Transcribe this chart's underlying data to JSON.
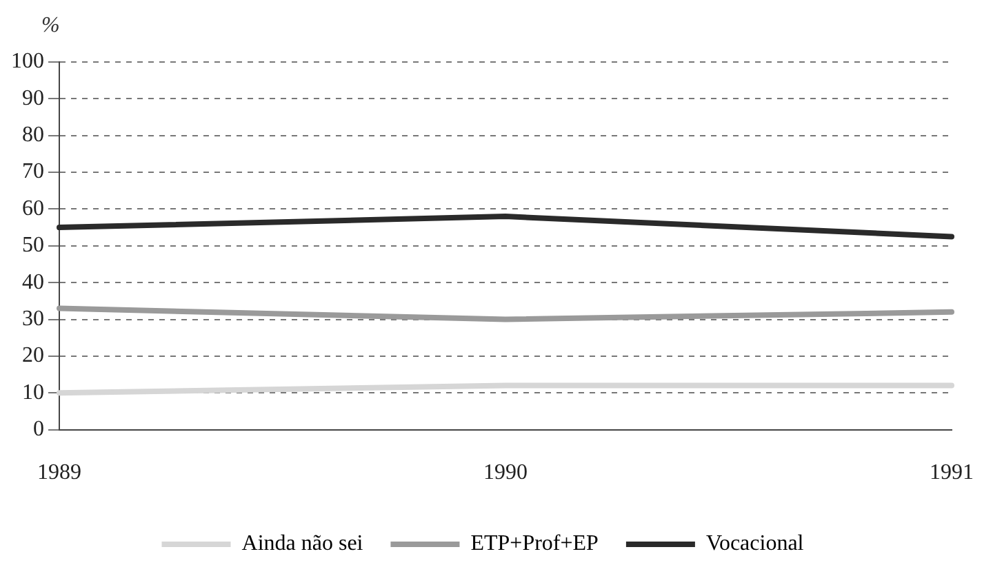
{
  "chart_data": {
    "type": "line",
    "ylabel": "%",
    "categories": [
      "1989",
      "1990",
      "1991"
    ],
    "series": [
      {
        "name": "Ainda não sei",
        "color": "#d6d6d6",
        "values": [
          10,
          12,
          12
        ]
      },
      {
        "name": "ETP+Prof+EP",
        "color": "#9a9a9a",
        "values": [
          33,
          30,
          32
        ]
      },
      {
        "name": "Vocacional",
        "color": "#2a2a2a",
        "values": [
          55,
          58,
          52.5
        ]
      }
    ],
    "ylim": [
      0,
      100
    ],
    "yticks": [
      0,
      10,
      20,
      30,
      40,
      50,
      60,
      70,
      80,
      90,
      100
    ],
    "grid": "y",
    "legend": "bottom",
    "marker": "none",
    "line_style": "solid"
  }
}
